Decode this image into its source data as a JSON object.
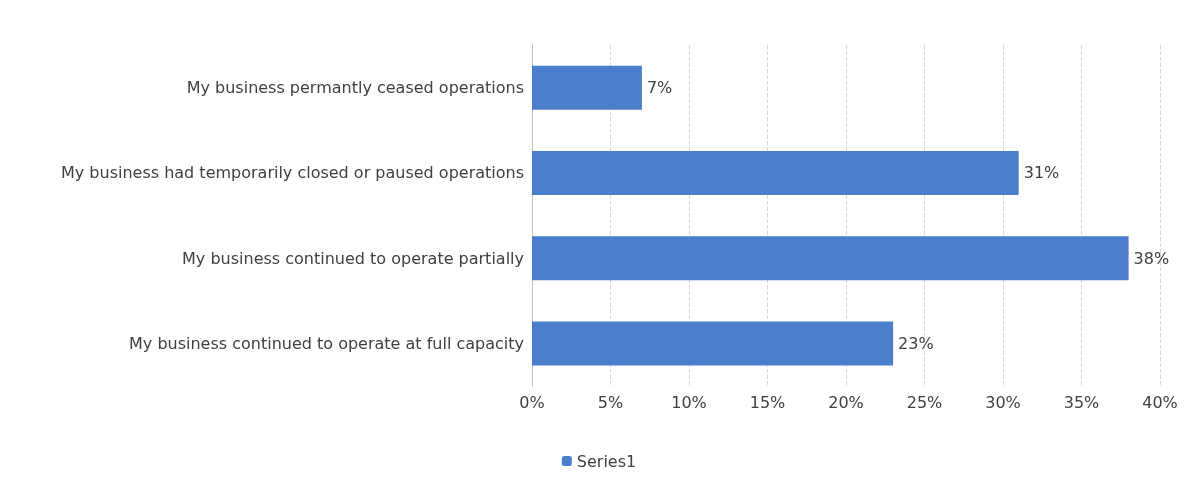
{
  "chart_data": {
    "type": "bar",
    "orientation": "horizontal",
    "categories": [
      "My business permantly ceased operations",
      "My business had temporarily closed or paused operations",
      "My business continued to operate partially",
      "My business continued to operate at full capacity"
    ],
    "series": [
      {
        "name": "Series1",
        "color": "#4a7dcc",
        "values": [
          7,
          31,
          38,
          23
        ],
        "value_labels": [
          "7%",
          "31%",
          "38%",
          "23%"
        ]
      }
    ],
    "xlim": [
      0,
      40
    ],
    "xticks": [
      {
        "value": 0,
        "label": "0%"
      },
      {
        "value": 5,
        "label": "5%"
      },
      {
        "value": 10,
        "label": "10%"
      },
      {
        "value": 15,
        "label": "15%"
      },
      {
        "value": 20,
        "label": "20%"
      },
      {
        "value": 25,
        "label": "25%"
      },
      {
        "value": 30,
        "label": "30%"
      },
      {
        "value": 35,
        "label": "35%"
      },
      {
        "value": 40,
        "label": "40%"
      }
    ],
    "grid": "x",
    "legend": "bottom"
  }
}
